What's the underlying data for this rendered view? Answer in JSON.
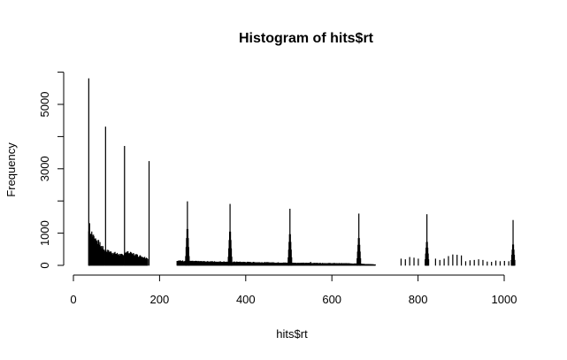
{
  "chart_data": {
    "type": "bar",
    "title": "Histogram of hits$rt",
    "xlabel": "hits$rt",
    "ylabel": "Frequency",
    "xlim": [
      0,
      1030
    ],
    "ylim": [
      0,
      6300
    ],
    "x_ticks": [
      0,
      200,
      400,
      600,
      800,
      1000
    ],
    "x_tick_labels": [
      "0",
      "200",
      "400",
      "600",
      "800",
      "1000"
    ],
    "y_ticks": [
      0,
      1000,
      2000,
      3000,
      4000,
      5000,
      6000
    ],
    "y_tick_labels": [
      "0",
      "1000",
      "",
      "3000",
      "",
      "5000",
      ""
    ],
    "grid": false,
    "bin_width": 1,
    "spikes": [
      {
        "x": 35,
        "value": 5800
      },
      {
        "x": 37,
        "value": 1300
      },
      {
        "x": 74,
        "value": 4300
      },
      {
        "x": 118,
        "value": 3700
      },
      {
        "x": 175,
        "value": 3230
      },
      {
        "x": 264,
        "value": 1980
      },
      {
        "x": 363,
        "value": 1900
      },
      {
        "x": 502,
        "value": 1750
      },
      {
        "x": 662,
        "value": 1600
      },
      {
        "x": 820,
        "value": 1580
      },
      {
        "x": 1020,
        "value": 1400
      }
    ],
    "regions": [
      {
        "from": 35,
        "to": 72,
        "start": 1050,
        "end": 450
      },
      {
        "from": 74,
        "to": 116,
        "start": 440,
        "end": 290
      },
      {
        "from": 118,
        "to": 172,
        "start": 410,
        "end": 210
      },
      {
        "from": 240,
        "to": 262,
        "start": 130,
        "end": 130
      },
      {
        "from": 266,
        "to": 361,
        "start": 120,
        "end": 100
      },
      {
        "from": 365,
        "to": 500,
        "start": 100,
        "end": 70
      },
      {
        "from": 504,
        "to": 660,
        "start": 70,
        "end": 50
      },
      {
        "from": 664,
        "to": 700,
        "start": 40,
        "end": 20
      }
    ],
    "peak_shoulders": [
      {
        "center": 264,
        "width": 4,
        "value": 1400
      },
      {
        "center": 363,
        "width": 4,
        "value": 1300
      },
      {
        "center": 502,
        "width": 4,
        "value": 1200
      },
      {
        "center": 662,
        "width": 4,
        "value": 1050
      },
      {
        "center": 820,
        "width": 4,
        "value": 900
      },
      {
        "center": 1020,
        "width": 4,
        "value": 800
      }
    ],
    "small_bars": [
      {
        "x": 760,
        "value": 200
      },
      {
        "x": 770,
        "value": 180
      },
      {
        "x": 780,
        "value": 250
      },
      {
        "x": 790,
        "value": 230
      },
      {
        "x": 800,
        "value": 200
      },
      {
        "x": 840,
        "value": 200
      },
      {
        "x": 850,
        "value": 160
      },
      {
        "x": 860,
        "value": 200
      },
      {
        "x": 870,
        "value": 280
      },
      {
        "x": 880,
        "value": 330
      },
      {
        "x": 890,
        "value": 320
      },
      {
        "x": 900,
        "value": 300
      },
      {
        "x": 910,
        "value": 120
      },
      {
        "x": 920,
        "value": 150
      },
      {
        "x": 930,
        "value": 160
      },
      {
        "x": 940,
        "value": 180
      },
      {
        "x": 950,
        "value": 160
      },
      {
        "x": 960,
        "value": 110
      },
      {
        "x": 970,
        "value": 100
      },
      {
        "x": 980,
        "value": 140
      },
      {
        "x": 990,
        "value": 120
      },
      {
        "x": 1000,
        "value": 130
      },
      {
        "x": 1010,
        "value": 120
      },
      {
        "x": 550,
        "value": 100
      }
    ]
  }
}
